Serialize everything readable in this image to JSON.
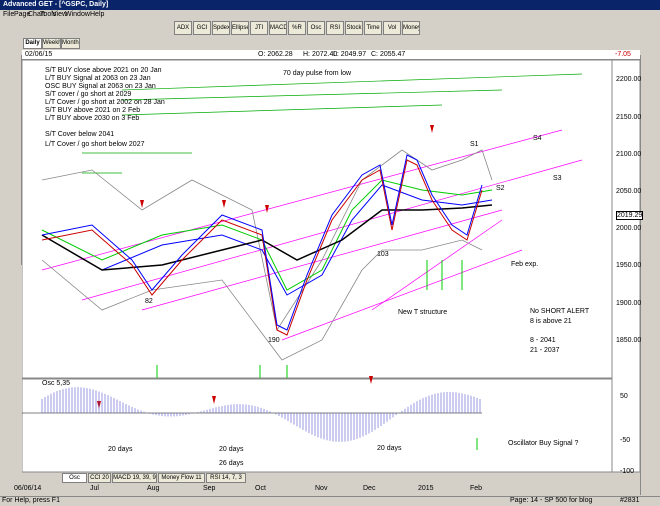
{
  "window": {
    "title": "Advanced GET - [^GSPC, Daily]"
  },
  "menu": [
    "File",
    "Page",
    "Chart",
    "Tools",
    "View",
    "Window",
    "Help"
  ],
  "toolbar": [
    "ADX",
    "GCI",
    "Spdex",
    "Ellipse",
    "JTI",
    "MACD",
    "%R",
    "Osc",
    "RSI",
    "Stock",
    "Time",
    "Vol",
    "Money"
  ],
  "tabs": [
    "Daily",
    "Weekly",
    "Monthly"
  ],
  "info": {
    "date": "02/06/15",
    "open": "O: 2062.28",
    "high": "H: 2072.40",
    "low": "L: 2049.97",
    "close": "C: 2055.47",
    "change": "-7.05"
  },
  "notes": [
    "S/T BUY close above 2021 on 20 Jan",
    "L/T BUY Signal at 2063 on 23 Jan",
    "OSC BUY Signal at 2063 on 23 Jan",
    "S/T cover / go short at 2029",
    "L/T Cover / go short at 2002 on 28 Jan",
    "S/T BUY above 2021 on 2 Feb",
    "L/T BUY above 2030 on 3 Feb",
    "S/T Cover below 2041",
    "L/T Cover / go short below 2027"
  ],
  "annotations": [
    "70 day pulse from low",
    "S1",
    "S4",
    "S2",
    "S3",
    "Feb exp.",
    "New T structure",
    "82",
    "190",
    "103",
    "No SHORT ALERT",
    "8 is above 21",
    "8   - 2041",
    "21 - 2037",
    "Oscillator Buy Signal ?",
    "20 days",
    "20 days",
    "26 days",
    "20 days"
  ],
  "price_axis": [
    "2200.00",
    "2150.00",
    "2100.00",
    "2050.00",
    "2019.29",
    "2000.00",
    "1950.00",
    "1900.00",
    "1850.00"
  ],
  "osc": {
    "title": "Osc 5,35",
    "axis": [
      "50",
      "-50",
      "-100"
    ]
  },
  "bottom_tabs": [
    "Osc 5,35",
    "CCI 20",
    "MACD 19, 39, 9",
    "Money Flow 11",
    "RSI 14, 7, 3"
  ],
  "date_axis": [
    "06/06/14",
    "Jul",
    "Aug",
    "Sep",
    "Oct",
    "Nov",
    "Dec",
    "2015",
    "Feb"
  ],
  "status": {
    "left": "For Help, press F1",
    "right": "Page: 14 - SP 500 for blog",
    "id": "#2831"
  }
}
